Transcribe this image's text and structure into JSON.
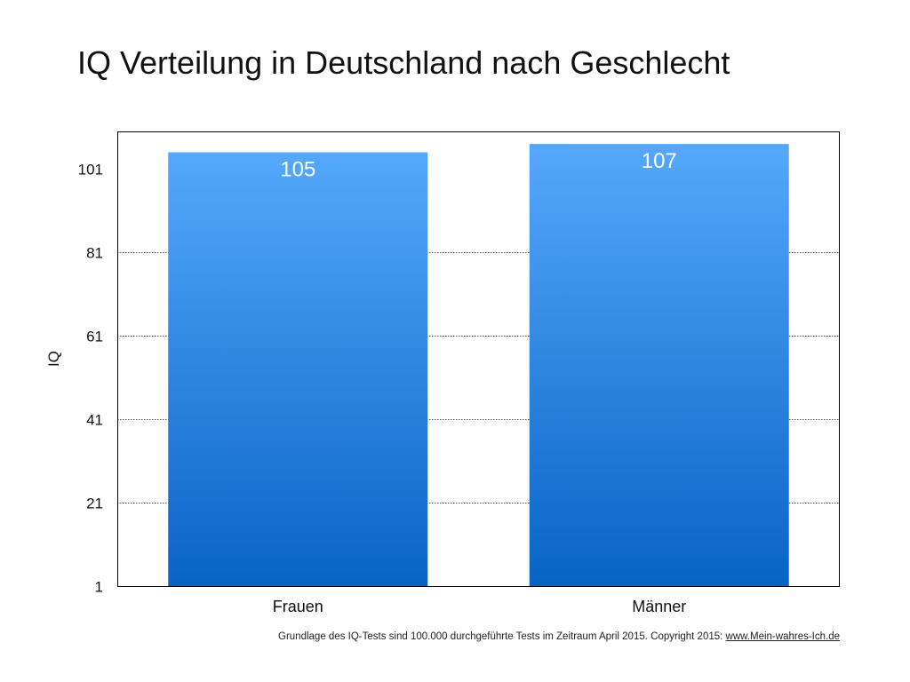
{
  "chart_data": {
    "type": "bar",
    "title": "IQ Verteilung in Deutschland nach Geschlecht",
    "categories": [
      "Frauen",
      "Männer"
    ],
    "values": [
      105,
      107
    ],
    "xlabel": "",
    "ylabel": "IQ",
    "ylim": [
      1,
      110
    ],
    "yticks": [
      1,
      21,
      41,
      61,
      81,
      101
    ],
    "grid": true,
    "bar_color_top": "#55a8fb",
    "bar_color_bottom": "#0864c4"
  },
  "footer": {
    "text": "Grundlage des IQ-Tests sind 100.000 durchgeführte Tests im Zeitraum April 2015. Copyright 2015: ",
    "link": "www.Mein-wahres-Ich.de"
  }
}
